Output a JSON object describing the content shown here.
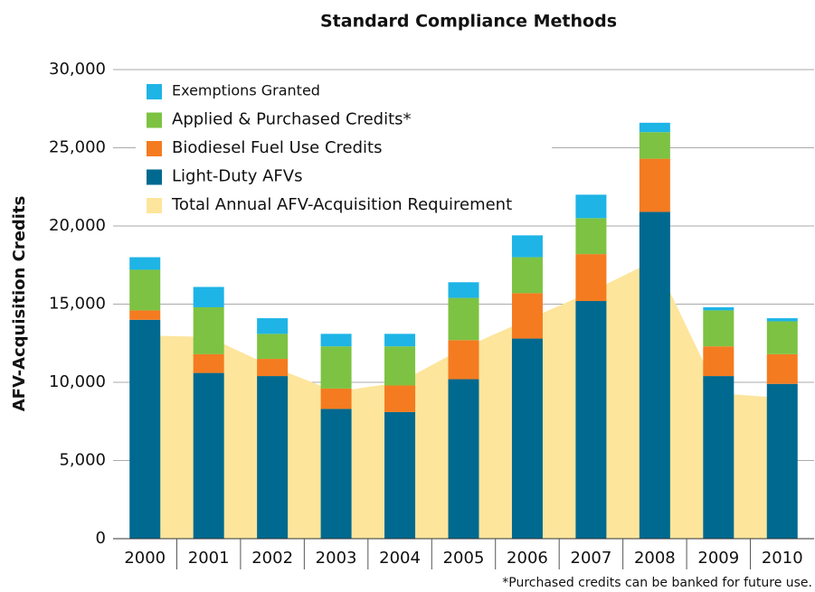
{
  "chart_data": {
    "type": "stacked-bar",
    "title": "Standard Compliance Methods",
    "y_label": "AFV-Acquisition Credits",
    "footnote": "*Purchased credits can be banked for future use.",
    "categories": [
      "2000",
      "2001",
      "2002",
      "2003",
      "2004",
      "2005",
      "2006",
      "2007",
      "2008",
      "2009",
      "2010"
    ],
    "series": [
      {
        "name": "Light-Duty AFVs",
        "color": "#00698f",
        "values": [
          14000,
          10600,
          10400,
          8300,
          8100,
          10200,
          12800,
          15200,
          20900,
          10400,
          9900
        ]
      },
      {
        "name": "Biodiesel Fuel Use Credits",
        "color": "#f47b20",
        "values": [
          600,
          1200,
          1100,
          1300,
          1700,
          2500,
          2900,
          3000,
          3400,
          1900,
          1900
        ]
      },
      {
        "name": "Applied & Purchased Credits*",
        "color": "#7dc242",
        "values": [
          2600,
          3000,
          1600,
          2700,
          2500,
          2700,
          2300,
          2300,
          1700,
          2300,
          2100
        ]
      },
      {
        "name": "Exemptions Granted",
        "color": "#1eb4e6",
        "values": [
          800,
          1300,
          1000,
          800,
          800,
          1000,
          1400,
          1500,
          600,
          200,
          200
        ]
      }
    ],
    "area": {
      "name": "Total Annual AFV-Acquisition Requirement",
      "color": "#fde59c",
      "values": [
        13000,
        12900,
        11000,
        9400,
        10000,
        12200,
        14000,
        15800,
        17800,
        9300,
        9000
      ]
    },
    "ylim": [
      0,
      30000
    ],
    "yticks": [
      0,
      {
        "value": 5000,
        "label": "5,000"
      },
      {
        "value": 10000,
        "label": "10,000"
      },
      {
        "value": 15000,
        "label": "15,000"
      },
      {
        "value": 20000,
        "label": "20,000"
      },
      {
        "value": 25000,
        "label": "25,000"
      },
      {
        "value": 30000,
        "label": "30,000"
      }
    ],
    "grid": true
  }
}
